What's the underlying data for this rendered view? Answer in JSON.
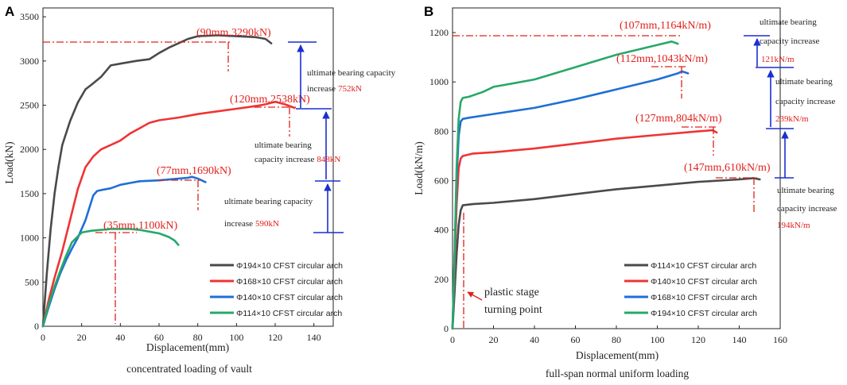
{
  "colors": {
    "dark": "#4a4a4a",
    "red": "#ef3434",
    "blue": "#1f6fd6",
    "green": "#27a86a",
    "annotation": "#e0201b",
    "arrow": "#1a2fd0"
  },
  "chart_data": [
    {
      "type": "line",
      "panel_label": "A",
      "title": "concentrated loading of vault",
      "xlabel": "Displacement(mm)",
      "ylabel": "Load(kN)",
      "xlim": [
        0,
        150
      ],
      "ylim": [
        0,
        3600
      ],
      "xticks": [
        "0",
        "20",
        "40",
        "60",
        "80",
        "100",
        "120",
        "140"
      ],
      "yticks": [
        "0",
        "500",
        "1000",
        "1500",
        "2000",
        "2500",
        "3000",
        "3500"
      ],
      "series": [
        {
          "name": "Φ194×10 CFST circular arch",
          "color": "#4a4a4a",
          "x": [
            0,
            2,
            4,
            6,
            8,
            10,
            14,
            18,
            22,
            25,
            30,
            35,
            40,
            48,
            55,
            60,
            65,
            70,
            75,
            80,
            85,
            90,
            100,
            110,
            115,
            118
          ],
          "y": [
            0,
            600,
            1100,
            1500,
            1800,
            2050,
            2320,
            2530,
            2680,
            2730,
            2820,
            2950,
            2970,
            3000,
            3020,
            3090,
            3150,
            3200,
            3250,
            3280,
            3285,
            3290,
            3280,
            3270,
            3250,
            3200
          ]
        },
        {
          "name": "Φ168×10 CFST circular arch",
          "color": "#ef3434",
          "x": [
            0,
            3,
            6,
            10,
            14,
            18,
            22,
            26,
            30,
            35,
            40,
            45,
            50,
            55,
            60,
            70,
            80,
            90,
            100,
            110,
            115,
            120,
            125,
            130
          ],
          "y": [
            0,
            300,
            550,
            850,
            1200,
            1550,
            1800,
            1920,
            2000,
            2050,
            2100,
            2180,
            2240,
            2300,
            2330,
            2360,
            2400,
            2430,
            2460,
            2490,
            2510,
            2538,
            2510,
            2470
          ]
        },
        {
          "name": "Φ140×10 CFST circular arch",
          "color": "#1f6fd6",
          "x": [
            0,
            3,
            6,
            9,
            12,
            15,
            18,
            22,
            26,
            28,
            30,
            35,
            40,
            45,
            50,
            60,
            70,
            75,
            77,
            80,
            84
          ],
          "y": [
            0,
            220,
            420,
            600,
            750,
            880,
            1000,
            1200,
            1480,
            1530,
            1540,
            1560,
            1600,
            1620,
            1640,
            1650,
            1670,
            1680,
            1690,
            1670,
            1630
          ]
        },
        {
          "name": "Φ114×10 CFST circular arch",
          "color": "#27a86a",
          "x": [
            0,
            3,
            6,
            9,
            12,
            15,
            20,
            25,
            30,
            35,
            40,
            45,
            50,
            55,
            60,
            65,
            68,
            70
          ],
          "y": [
            0,
            250,
            450,
            630,
            800,
            950,
            1060,
            1080,
            1090,
            1100,
            1100,
            1100,
            1090,
            1070,
            1050,
            1010,
            970,
            920
          ]
        }
      ],
      "annotations": [
        {
          "label": "(90mm,3290kN)",
          "x": 90,
          "y": 3290
        },
        {
          "label": "(120mm,2538kN)",
          "x": 120,
          "y": 2538
        },
        {
          "label": "(77mm,1690kN)",
          "x": 77,
          "y": 1690
        },
        {
          "label": "(35mm,1100kN)",
          "x": 35,
          "y": 1100
        }
      ],
      "increase_notes": [
        {
          "text_lines": [
            "ultimate bearing capacity",
            "increase"
          ],
          "value": "752kN"
        },
        {
          "text_lines": [
            "ultimate bearing",
            "capacity increase"
          ],
          "value": "848kN"
        },
        {
          "text_lines": [
            "ultimate bearing capacity",
            "increase"
          ],
          "value": "590kN"
        }
      ]
    },
    {
      "type": "line",
      "panel_label": "B",
      "title": "full-span normal uniform loading",
      "xlabel": "Displacement(mm)",
      "ylabel": "Load(kN/m)",
      "xlim": [
        0,
        160
      ],
      "ylim": [
        0,
        1300
      ],
      "xticks": [
        "0",
        "20",
        "40",
        "60",
        "80",
        "100",
        "120",
        "140",
        "160"
      ],
      "yticks": [
        "0",
        "200",
        "400",
        "600",
        "800",
        "1000",
        "1200"
      ],
      "series": [
        {
          "name": "Φ114×10 CFST circular arch",
          "color": "#4a4a4a",
          "x": [
            0,
            1,
            2,
            3,
            4,
            5,
            10,
            20,
            40,
            60,
            80,
            100,
            120,
            140,
            147,
            150
          ],
          "y": [
            0,
            150,
            300,
            420,
            480,
            500,
            505,
            510,
            525,
            545,
            565,
            580,
            595,
            605,
            610,
            605
          ]
        },
        {
          "name": "Φ140×10 CFST circular arch",
          "color": "#ef3434",
          "x": [
            0,
            1,
            2,
            3,
            4,
            5,
            10,
            20,
            40,
            60,
            80,
            100,
            120,
            127,
            129
          ],
          "y": [
            0,
            250,
            500,
            650,
            690,
            700,
            710,
            715,
            730,
            750,
            770,
            785,
            800,
            804,
            795
          ]
        },
        {
          "name": "Φ168×10 CFST circular arch",
          "color": "#1f6fd6",
          "x": [
            0,
            1,
            2,
            3,
            4,
            5,
            8,
            20,
            40,
            60,
            80,
            100,
            110,
            112,
            115
          ],
          "y": [
            0,
            300,
            600,
            780,
            840,
            850,
            855,
            870,
            895,
            930,
            970,
            1010,
            1035,
            1043,
            1035
          ]
        },
        {
          "name": "Φ194×10 CFST circular arch",
          "color": "#27a86a",
          "x": [
            0,
            1,
            2,
            3,
            4,
            5,
            8,
            15,
            20,
            30,
            40,
            60,
            80,
            100,
            107,
            110
          ],
          "y": [
            0,
            300,
            650,
            850,
            920,
            935,
            940,
            960,
            980,
            995,
            1010,
            1060,
            1110,
            1150,
            1164,
            1155
          ]
        }
      ],
      "annotations": [
        {
          "label": "(107mm,1164kN/m)",
          "x": 107,
          "y": 1164
        },
        {
          "label": "(112mm,1043kN/m)",
          "x": 112,
          "y": 1043
        },
        {
          "label": "(127mm,804kN/m)",
          "x": 127,
          "y": 804
        },
        {
          "label": "(147mm,610kN/m)",
          "x": 147,
          "y": 610
        }
      ],
      "increase_notes": [
        {
          "text_lines": [
            "ultimate bearing",
            "capacity increase"
          ],
          "value": "121kN/m"
        },
        {
          "text_lines": [
            "ultimate bearing",
            "capacity increase"
          ],
          "value": "239kN/m"
        },
        {
          "text_lines": [
            "ultimate bearing",
            "capacity increase"
          ],
          "value": "194kN/m"
        }
      ],
      "turning_point": {
        "text_lines": [
          "plastic stage",
          "turning point"
        ],
        "x": 5
      }
    }
  ]
}
